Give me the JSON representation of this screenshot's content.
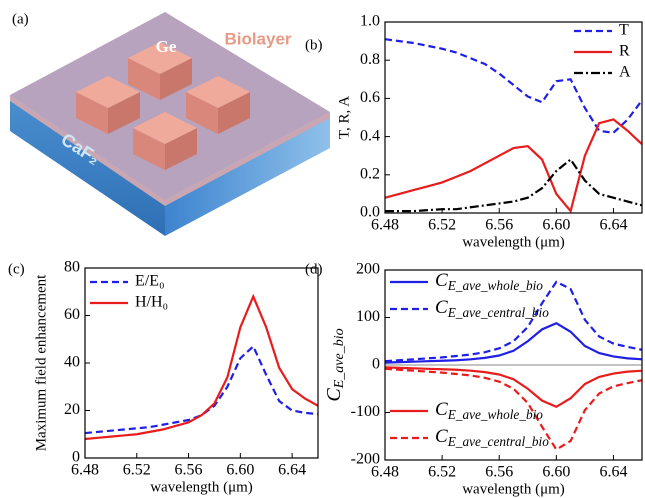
{
  "illustration": {
    "label": "(a)",
    "top_label": "Ge",
    "layer_label": "Biolayer",
    "substrate_label": "CaF₂"
  },
  "chart_data": [
    {
      "type": "line",
      "label": "(b)",
      "x_label": "wavelength (μm)",
      "y_label": "T, R, A",
      "legend": "upper right",
      "x": [
        6.48,
        6.49,
        6.5,
        6.51,
        6.52,
        6.53,
        6.54,
        6.55,
        6.56,
        6.57,
        6.58,
        6.59,
        6.6,
        6.61,
        6.62,
        6.63,
        6.64,
        6.65,
        6.66
      ],
      "xlim": [
        6.48,
        6.66
      ],
      "xticks": [
        6.48,
        6.52,
        6.56,
        {
          "value": 6.6,
          "label": "6.60"
        },
        6.64
      ],
      "ylim": [
        0,
        1
      ],
      "yticks": [
        {
          "value": 0,
          "label": "0.0"
        },
        0.2,
        0.4,
        0.6,
        0.8,
        {
          "value": 1,
          "label": "1.0"
        }
      ],
      "series": [
        {
          "name": "T",
          "color": "#1f1fe6",
          "linestyle": "dashed",
          "values": [
            0.91,
            0.9,
            0.89,
            0.875,
            0.86,
            0.84,
            0.81,
            0.78,
            0.73,
            0.67,
            0.61,
            0.58,
            0.69,
            0.7,
            0.55,
            0.43,
            0.42,
            0.49,
            0.59
          ]
        },
        {
          "name": "R",
          "color": "#e81c1c",
          "linestyle": "solid",
          "values": [
            0.08,
            0.1,
            0.12,
            0.14,
            0.16,
            0.19,
            0.22,
            0.26,
            0.3,
            0.34,
            0.35,
            0.28,
            0.1,
            0.01,
            0.3,
            0.47,
            0.49,
            0.43,
            0.36
          ]
        },
        {
          "name": "A",
          "color": "#000000",
          "linestyle": "dashdot",
          "values": [
            0.01,
            0.01,
            0.01,
            0.015,
            0.02,
            0.02,
            0.03,
            0.04,
            0.05,
            0.06,
            0.08,
            0.13,
            0.22,
            0.28,
            0.17,
            0.1,
            0.08,
            0.06,
            0.04
          ]
        }
      ]
    },
    {
      "type": "line",
      "label": "(c)",
      "x_label": "wavelength (μm)",
      "y_label": "Maximum field enhancement",
      "legend": "upper left",
      "x": [
        6.48,
        6.49,
        6.5,
        6.51,
        6.52,
        6.53,
        6.54,
        6.55,
        6.56,
        6.57,
        6.58,
        6.59,
        6.6,
        6.61,
        6.62,
        6.63,
        6.64,
        6.65,
        6.66
      ],
      "xlim": [
        6.48,
        6.66
      ],
      "xticks": [
        6.48,
        6.52,
        6.56,
        {
          "value": 6.6,
          "label": "6.60"
        },
        6.64
      ],
      "ylim": [
        0,
        80
      ],
      "yticks": [
        0,
        20,
        40,
        60,
        80
      ],
      "series": [
        {
          "name": "E/E₀",
          "color": "#1f1fe6",
          "linestyle": "dashed",
          "values": [
            10.5,
            11,
            11.5,
            12,
            12.5,
            13,
            14,
            15,
            16,
            18,
            22,
            30,
            42,
            47,
            35,
            24,
            20,
            19,
            18.5
          ]
        },
        {
          "name": "H/H₀",
          "color": "#e81c1c",
          "linestyle": "solid",
          "values": [
            8,
            8.5,
            9,
            9.5,
            10,
            11,
            12,
            13.5,
            15,
            18,
            23,
            34,
            55,
            68,
            55,
            38,
            29,
            25,
            22
          ]
        }
      ]
    },
    {
      "type": "line",
      "label": "(d)",
      "x_label": "wavelength (μm)",
      "y_label": "C_E_ave_bio",
      "x": [
        6.48,
        6.49,
        6.5,
        6.51,
        6.52,
        6.53,
        6.54,
        6.55,
        6.56,
        6.57,
        6.58,
        6.59,
        6.6,
        6.61,
        6.62,
        6.63,
        6.64,
        6.65,
        6.66
      ],
      "xlim": [
        6.48,
        6.66
      ],
      "xticks": [
        6.48,
        6.52,
        6.56,
        {
          "value": 6.6,
          "label": "6.60"
        },
        6.64
      ],
      "ylim": [
        -200,
        200
      ],
      "yticks": [
        -200,
        -100,
        0,
        100,
        200
      ],
      "zero_line": true,
      "series": [
        {
          "name": "C_E_ave_whole_bio",
          "color": "#1f1fe6",
          "linestyle": "solid",
          "legend": "upper left",
          "values": [
            5,
            6,
            7,
            8,
            9,
            10,
            12,
            15,
            20,
            30,
            50,
            75,
            88,
            70,
            40,
            25,
            18,
            14,
            12
          ]
        },
        {
          "name": "C_E_ave_central_bio",
          "color": "#1f1fe6",
          "linestyle": "dashed",
          "legend": "upper left",
          "values": [
            8,
            10,
            12,
            14,
            16,
            19,
            22,
            27,
            35,
            50,
            80,
            130,
            175,
            160,
            95,
            60,
            45,
            38,
            32
          ]
        },
        {
          "name": "C_E_ave_whole_bio",
          "color": "#e81c1c",
          "linestyle": "solid",
          "legend": "lower left",
          "values": [
            -5,
            -6,
            -7,
            -8,
            -9,
            -10,
            -12,
            -15,
            -20,
            -30,
            -50,
            -75,
            -88,
            -70,
            -40,
            -25,
            -18,
            -14,
            -12
          ]
        },
        {
          "name": "C_E_ave_central_bio",
          "color": "#e81c1c",
          "linestyle": "dashed",
          "legend": "lower left",
          "values": [
            -8,
            -10,
            -12,
            -14,
            -16,
            -19,
            -22,
            -27,
            -35,
            -50,
            -80,
            -130,
            -178,
            -160,
            -95,
            -60,
            -45,
            -38,
            -32
          ]
        }
      ]
    }
  ]
}
